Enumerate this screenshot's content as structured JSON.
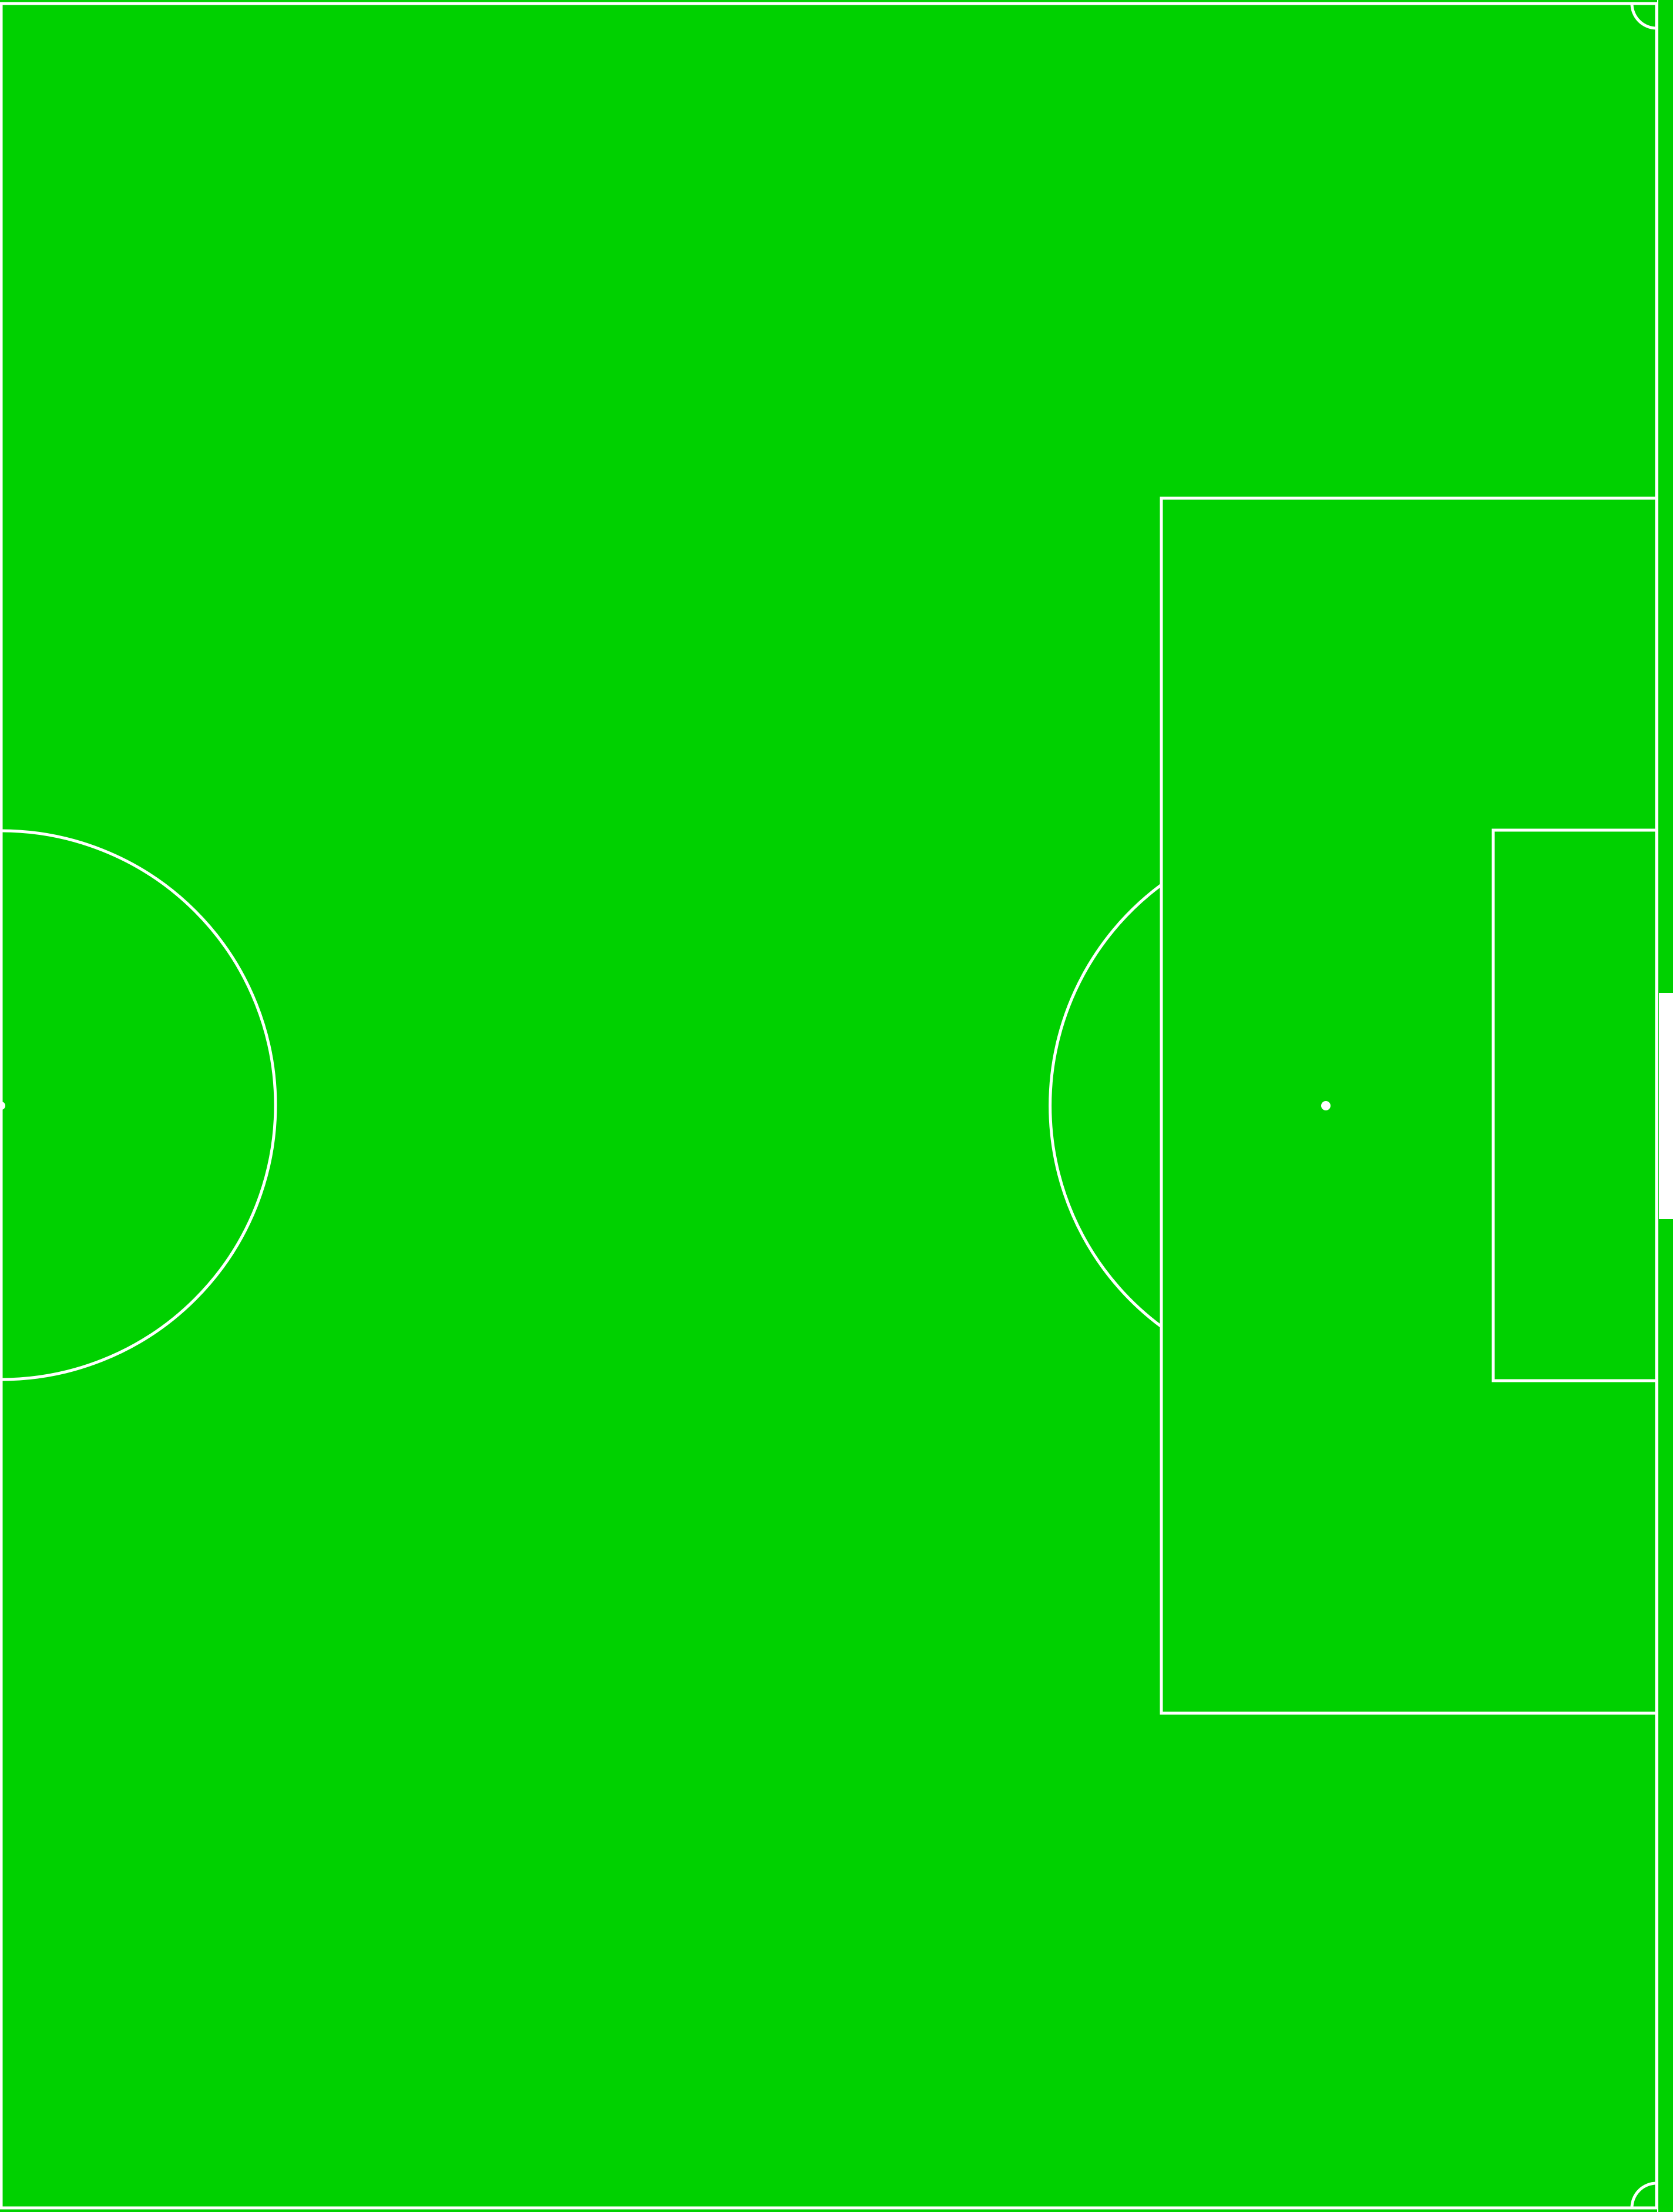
{
  "pitch": {
    "view": "half-pitch",
    "attacking_end": "right",
    "grass_color": "#00D100",
    "line_color": "#FFFFFF",
    "background_color": "#FFFFFF",
    "features": [
      "touchline-top",
      "touchline-bottom",
      "halfway-line",
      "goal-line",
      "center-circle-half",
      "center-spot",
      "penalty-area",
      "goal-area",
      "penalty-spot",
      "penalty-arc",
      "corner-arc-top",
      "corner-arc-bottom",
      "goal"
    ]
  }
}
